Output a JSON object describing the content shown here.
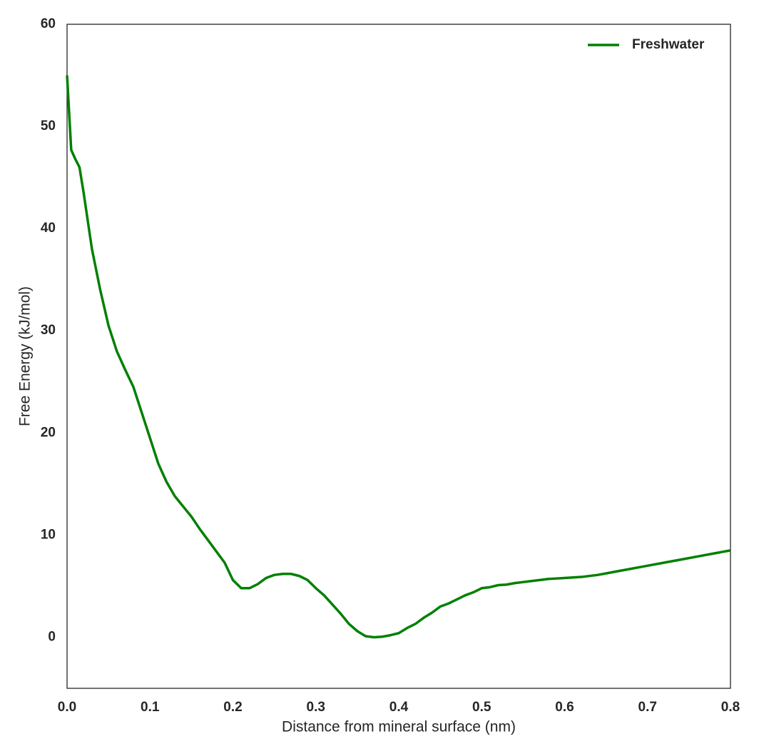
{
  "chart_data": {
    "type": "line",
    "x_label": "Distance from mineral surface (nm)",
    "y_label": "Free Energy (kJ/mol)",
    "x": [
      0,
      0.005,
      0.01,
      0.015,
      0.02,
      0.03,
      0.04,
      0.05,
      0.06,
      0.07,
      0.08,
      0.09,
      0.1,
      0.11,
      0.12,
      0.13,
      0.14,
      0.15,
      0.16,
      0.17,
      0.18,
      0.19,
      0.2,
      0.21,
      0.22,
      0.23,
      0.24,
      0.25,
      0.26,
      0.27,
      0.28,
      0.29,
      0.3,
      0.31,
      0.32,
      0.33,
      0.34,
      0.35,
      0.36,
      0.37,
      0.38,
      0.39,
      0.4,
      0.41,
      0.42,
      0.43,
      0.44,
      0.45,
      0.46,
      0.47,
      0.48,
      0.49,
      0.5,
      0.51,
      0.52,
      0.53,
      0.54,
      0.55,
      0.56,
      0.57,
      0.58,
      0.59,
      0.6,
      0.62,
      0.64,
      0.66,
      0.68,
      0.7,
      0.72,
      0.74,
      0.76,
      0.78,
      0.8
    ],
    "series": [
      {
        "name": "Freshwater",
        "color": "#008000",
        "values": [
          55,
          47.7,
          46.8,
          46,
          43.5,
          38,
          34,
          30.5,
          28,
          26.2,
          24.5,
          22,
          19.5,
          17,
          15.2,
          13.8,
          12.8,
          11.8,
          10.6,
          9.5,
          8.4,
          7.3,
          5.6,
          4.8,
          4.8,
          5.2,
          5.8,
          6.1,
          6.2,
          6.2,
          6,
          5.6,
          4.8,
          4.1,
          3.2,
          2.3,
          1.3,
          0.6,
          0.1,
          0,
          0.05,
          0.2,
          0.4,
          0.9,
          1.3,
          1.9,
          2.4,
          3,
          3.3,
          3.7,
          4.1,
          4.4,
          4.8,
          4.9,
          5.1,
          5.15,
          5.3,
          5.4,
          5.5,
          5.6,
          5.7,
          5.75,
          5.8,
          5.9,
          6.1,
          6.4,
          6.7,
          7,
          7.3,
          7.6,
          7.9,
          8.2,
          8.5
        ]
      }
    ],
    "xlim": [
      0,
      0.8
    ],
    "xticks": [
      {
        "value": 0,
        "label": "0.0"
      },
      0.1,
      0.2,
      0.3,
      0.4,
      0.5,
      0.6,
      0.7,
      0.8
    ],
    "ylim": [
      -5,
      60
    ],
    "yticks": [
      0,
      10,
      20,
      30,
      40,
      50,
      60
    ],
    "grid": false,
    "legend": "upper right"
  }
}
